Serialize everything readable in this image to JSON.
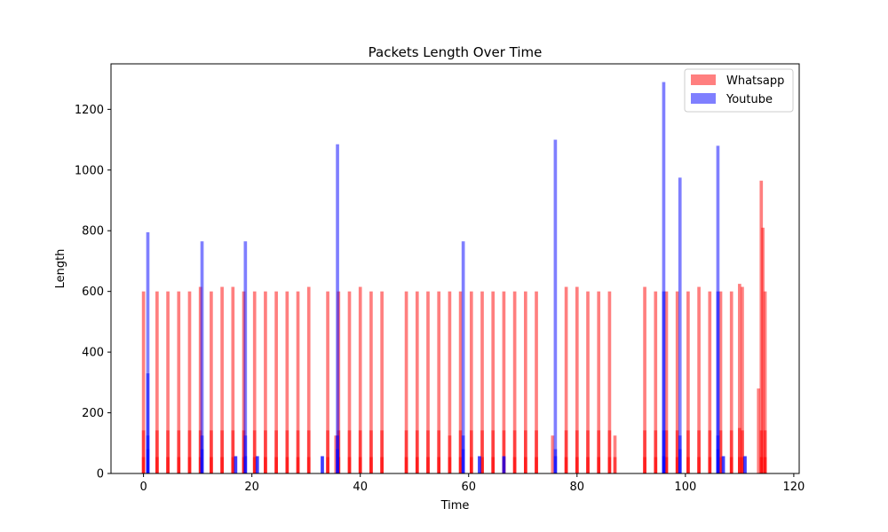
{
  "chart_data": {
    "type": "bar",
    "title": "Packets Length Over Time",
    "xlabel": "Time",
    "ylabel": "Length",
    "xlim": [
      -6,
      121
    ],
    "ylim": [
      0,
      1350
    ],
    "x_ticks": [
      0,
      20,
      40,
      60,
      80,
      100,
      120
    ],
    "y_ticks": [
      0,
      200,
      400,
      600,
      800,
      1000,
      1200
    ],
    "bar_width": 0.6,
    "grid": false,
    "legend_position": "top-right",
    "series": [
      {
        "name": "Whatsapp",
        "color": "#ff0000",
        "alpha": 0.5,
        "points": [
          [
            0,
            600
          ],
          [
            0,
            142
          ],
          [
            0,
            54
          ],
          [
            2.5,
            600
          ],
          [
            2.5,
            142
          ],
          [
            2.5,
            54
          ],
          [
            4.5,
            600
          ],
          [
            4.5,
            142
          ],
          [
            4.5,
            54
          ],
          [
            6.5,
            600
          ],
          [
            6.5,
            142
          ],
          [
            6.5,
            54
          ],
          [
            8.5,
            600
          ],
          [
            8.5,
            142
          ],
          [
            8.5,
            54
          ],
          [
            10.5,
            615
          ],
          [
            10.5,
            142
          ],
          [
            10.5,
            54
          ],
          [
            12.5,
            600
          ],
          [
            12.5,
            142
          ],
          [
            12.5,
            54
          ],
          [
            14.5,
            615
          ],
          [
            14.5,
            142
          ],
          [
            14.5,
            54
          ],
          [
            16.5,
            615
          ],
          [
            16.5,
            142
          ],
          [
            16.5,
            54
          ],
          [
            18.5,
            600
          ],
          [
            18.5,
            142
          ],
          [
            18.5,
            54
          ],
          [
            20.5,
            600
          ],
          [
            20.5,
            142
          ],
          [
            20.5,
            54
          ],
          [
            22.5,
            600
          ],
          [
            22.5,
            142
          ],
          [
            22.5,
            54
          ],
          [
            24.5,
            600
          ],
          [
            24.5,
            142
          ],
          [
            24.5,
            54
          ],
          [
            26.5,
            600
          ],
          [
            26.5,
            142
          ],
          [
            26.5,
            54
          ],
          [
            28.5,
            600
          ],
          [
            28.5,
            142
          ],
          [
            28.5,
            54
          ],
          [
            30.5,
            615
          ],
          [
            30.5,
            142
          ],
          [
            30.5,
            54
          ],
          [
            34,
            600
          ],
          [
            34,
            142
          ],
          [
            34,
            54
          ],
          [
            35.5,
            125
          ],
          [
            36,
            600
          ],
          [
            36,
            142
          ],
          [
            36,
            54
          ],
          [
            38,
            600
          ],
          [
            38,
            142
          ],
          [
            38,
            54
          ],
          [
            40,
            615
          ],
          [
            40,
            142
          ],
          [
            40,
            54
          ],
          [
            42,
            600
          ],
          [
            42,
            142
          ],
          [
            42,
            54
          ],
          [
            44,
            600
          ],
          [
            44,
            142
          ],
          [
            44,
            54
          ],
          [
            48.5,
            600
          ],
          [
            48.5,
            142
          ],
          [
            48.5,
            54
          ],
          [
            50.5,
            600
          ],
          [
            50.5,
            142
          ],
          [
            50.5,
            54
          ],
          [
            52.5,
            600
          ],
          [
            52.5,
            142
          ],
          [
            52.5,
            54
          ],
          [
            54.5,
            600
          ],
          [
            54.5,
            142
          ],
          [
            54.5,
            54
          ],
          [
            56.5,
            600
          ],
          [
            56.5,
            125
          ],
          [
            56.5,
            54
          ],
          [
            58.5,
            600
          ],
          [
            58.5,
            142
          ],
          [
            58.5,
            54
          ],
          [
            60.5,
            600
          ],
          [
            60.5,
            142
          ],
          [
            60.5,
            54
          ],
          [
            62.5,
            600
          ],
          [
            62.5,
            142
          ],
          [
            62.5,
            54
          ],
          [
            64.5,
            600
          ],
          [
            64.5,
            142
          ],
          [
            64.5,
            54
          ],
          [
            66.5,
            600
          ],
          [
            66.5,
            142
          ],
          [
            66.5,
            54
          ],
          [
            68.5,
            600
          ],
          [
            68.5,
            142
          ],
          [
            68.5,
            54
          ],
          [
            70.5,
            600
          ],
          [
            70.5,
            142
          ],
          [
            70.5,
            54
          ],
          [
            72.5,
            600
          ],
          [
            72.5,
            142
          ],
          [
            72.5,
            54
          ],
          [
            75.5,
            125
          ],
          [
            78,
            615
          ],
          [
            78,
            142
          ],
          [
            78,
            54
          ],
          [
            80,
            615
          ],
          [
            80,
            142
          ],
          [
            80,
            54
          ],
          [
            82,
            600
          ],
          [
            82,
            142
          ],
          [
            82,
            54
          ],
          [
            84,
            600
          ],
          [
            84,
            142
          ],
          [
            84,
            54
          ],
          [
            86,
            600
          ],
          [
            86,
            142
          ],
          [
            86,
            54
          ],
          [
            87,
            125
          ],
          [
            87,
            54
          ],
          [
            92.5,
            615
          ],
          [
            92.5,
            142
          ],
          [
            92.5,
            54
          ],
          [
            94.5,
            600
          ],
          [
            94.5,
            142
          ],
          [
            94.5,
            54
          ],
          [
            96.5,
            600
          ],
          [
            96.5,
            142
          ],
          [
            96.5,
            54
          ],
          [
            98.5,
            600
          ],
          [
            98.5,
            142
          ],
          [
            98.5,
            54
          ],
          [
            100.5,
            600
          ],
          [
            100.5,
            142
          ],
          [
            100.5,
            54
          ],
          [
            102.5,
            615
          ],
          [
            102.5,
            142
          ],
          [
            102.5,
            54
          ],
          [
            104.5,
            600
          ],
          [
            104.5,
            142
          ],
          [
            104.5,
            54
          ],
          [
            106.5,
            600
          ],
          [
            106.5,
            142
          ],
          [
            106.5,
            54
          ],
          [
            108.5,
            600
          ],
          [
            108.5,
            142
          ],
          [
            108.5,
            54
          ],
          [
            110,
            625
          ],
          [
            110,
            150
          ],
          [
            110,
            54
          ],
          [
            110.5,
            615
          ],
          [
            110.5,
            142
          ],
          [
            110.5,
            54
          ],
          [
            113.5,
            280
          ],
          [
            114,
            965
          ],
          [
            114,
            142
          ],
          [
            114,
            54
          ],
          [
            114.3,
            810
          ],
          [
            114.7,
            600
          ],
          [
            114.7,
            142
          ],
          [
            114.7,
            54
          ]
        ]
      },
      {
        "name": "Youtube",
        "color": "#0000ff",
        "alpha": 0.5,
        "points": [
          [
            0.8,
            795
          ],
          [
            0.8,
            330
          ],
          [
            0.8,
            125
          ],
          [
            0.8,
            80
          ],
          [
            10.8,
            765
          ],
          [
            10.8,
            125
          ],
          [
            10.8,
            80
          ],
          [
            17,
            57
          ],
          [
            17,
            57
          ],
          [
            18.8,
            765
          ],
          [
            18.8,
            125
          ],
          [
            18.8,
            57
          ],
          [
            21,
            57
          ],
          [
            21,
            57
          ],
          [
            33,
            57
          ],
          [
            33,
            57
          ],
          [
            35.8,
            1085
          ],
          [
            35.8,
            125
          ],
          [
            35.8,
            80
          ],
          [
            59,
            765
          ],
          [
            59,
            125
          ],
          [
            59,
            80
          ],
          [
            62,
            57
          ],
          [
            62,
            57
          ],
          [
            66.5,
            57
          ],
          [
            66.5,
            57
          ],
          [
            76,
            1100
          ],
          [
            76,
            80
          ],
          [
            76,
            57
          ],
          [
            96,
            1290
          ],
          [
            96,
            600
          ],
          [
            96,
            142
          ],
          [
            96,
            57
          ],
          [
            99,
            975
          ],
          [
            99,
            125
          ],
          [
            99,
            80
          ],
          [
            106,
            1080
          ],
          [
            106,
            600
          ],
          [
            106,
            125
          ],
          [
            106,
            80
          ],
          [
            107,
            57
          ],
          [
            107,
            57
          ],
          [
            111,
            57
          ],
          [
            111,
            57
          ]
        ]
      }
    ]
  }
}
